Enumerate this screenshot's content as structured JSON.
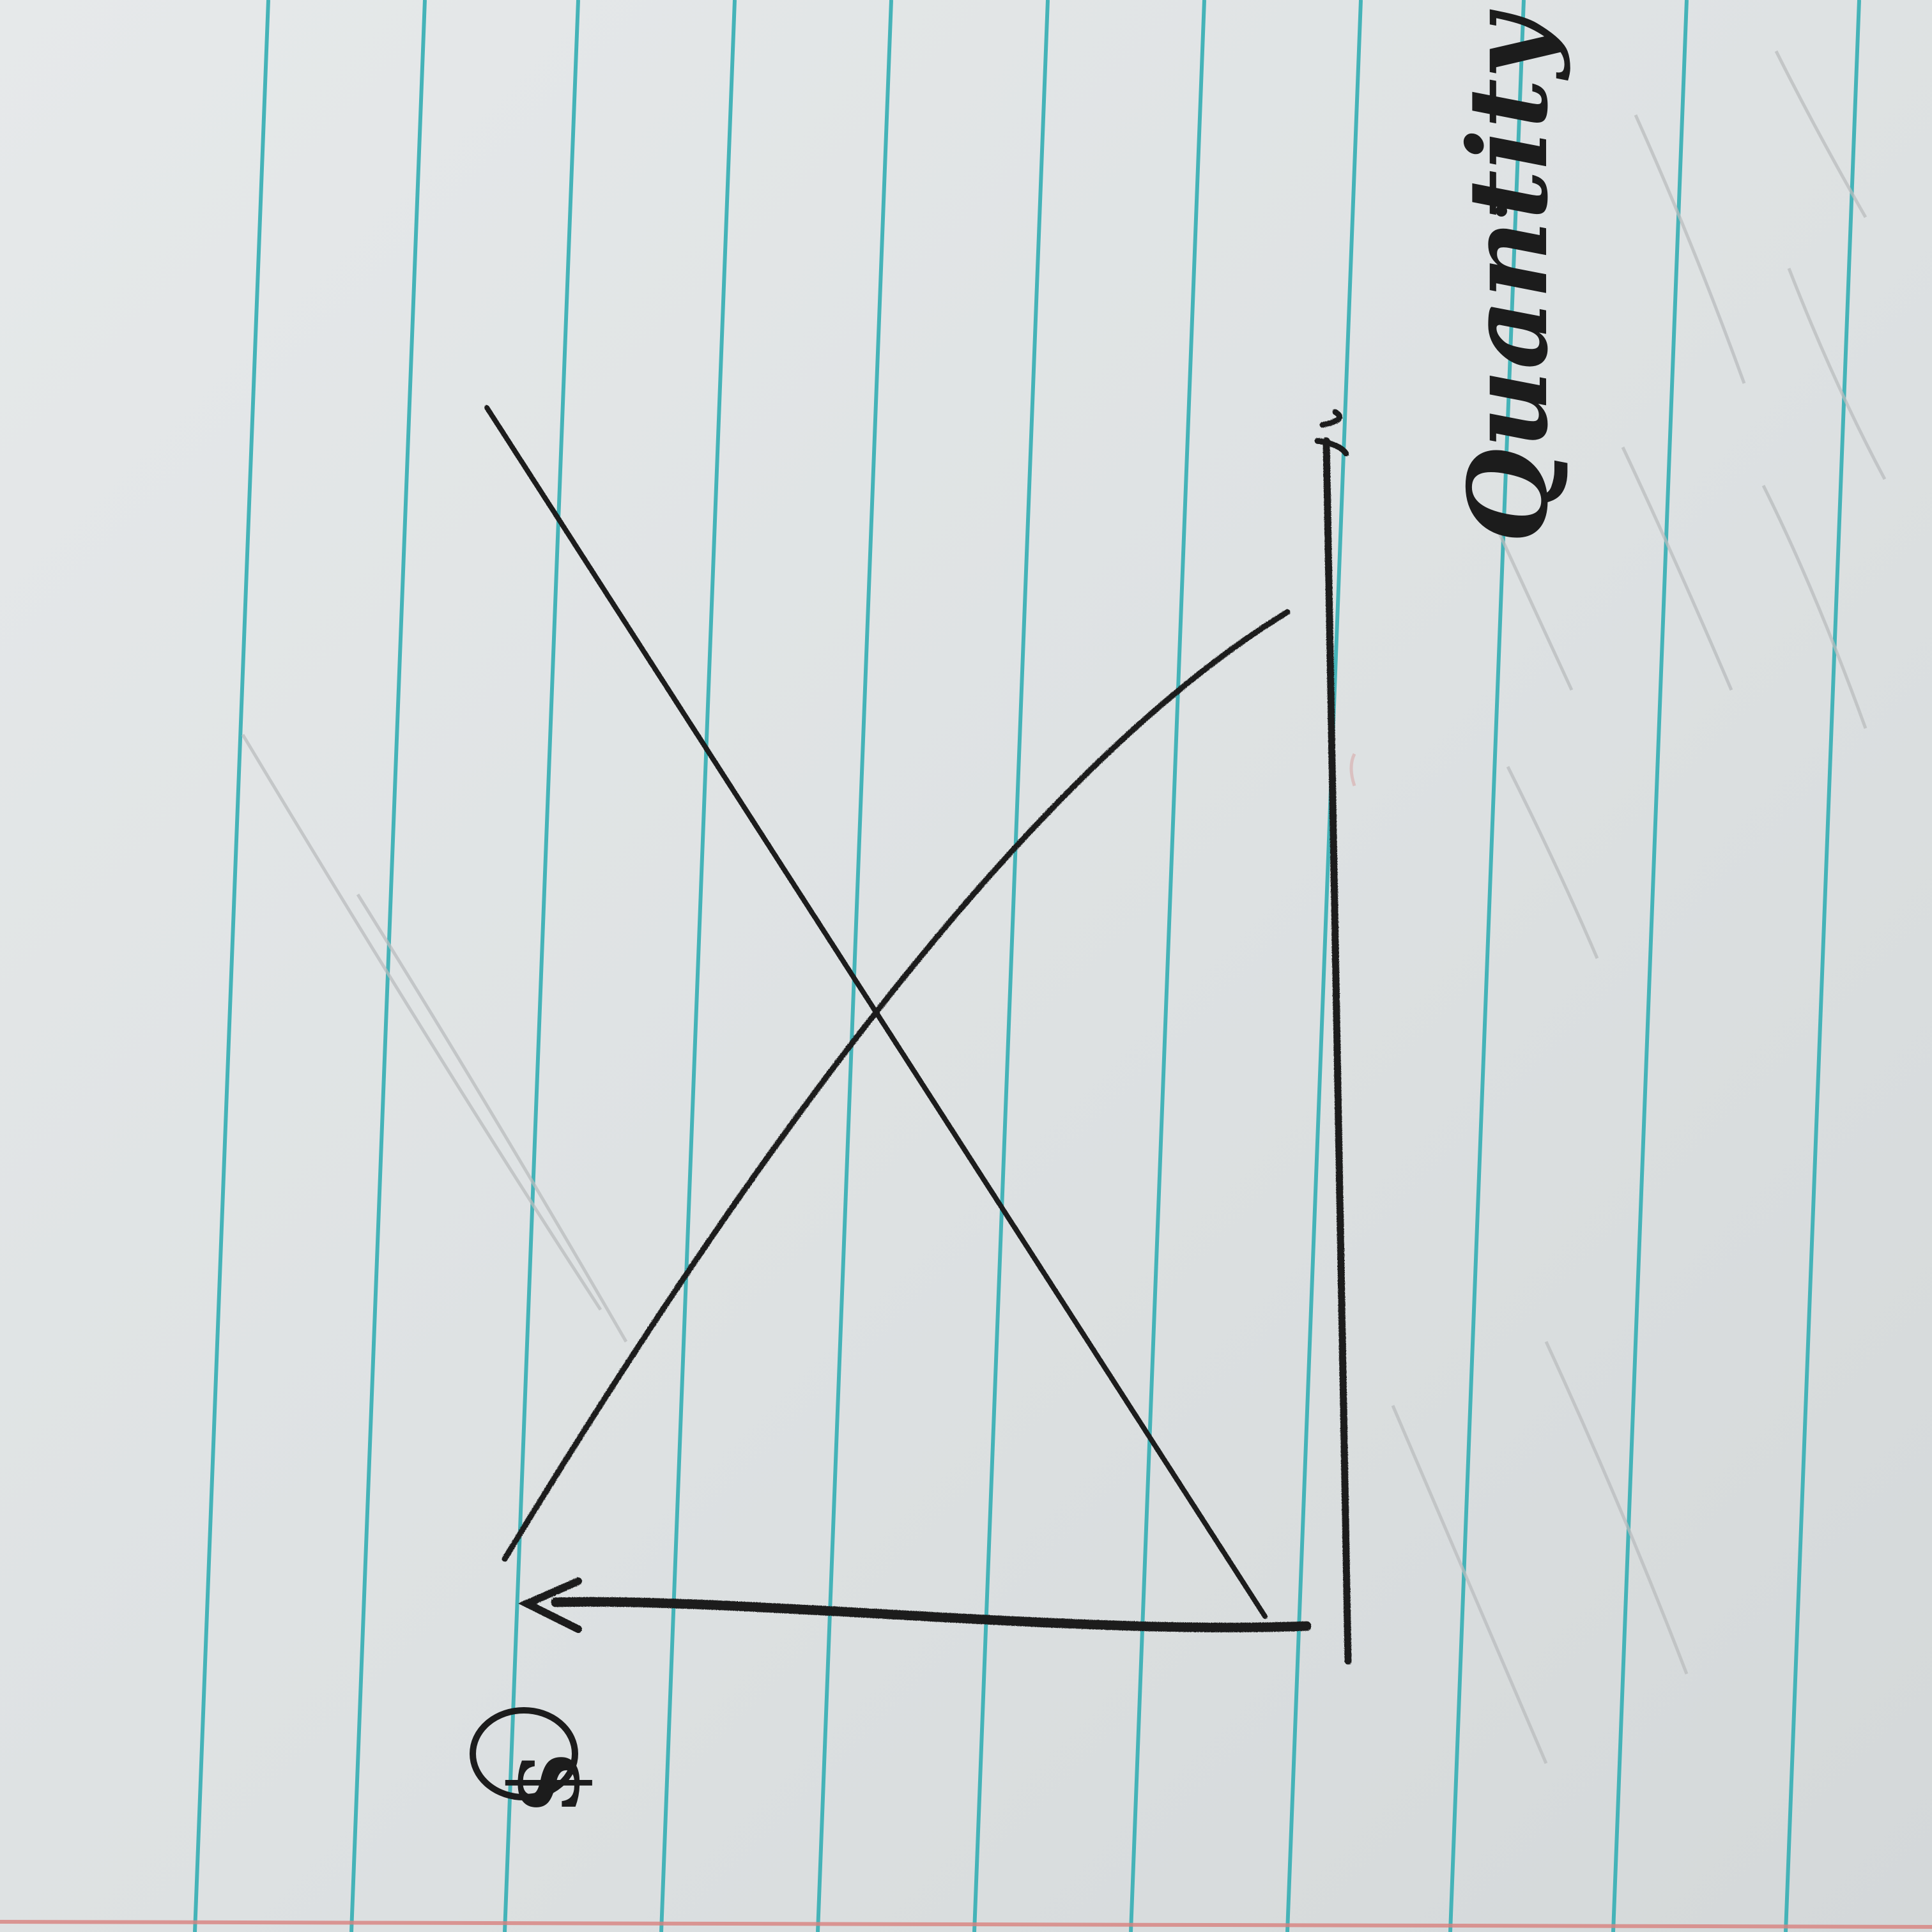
{
  "paper": {
    "background_color": "#dfe3e4",
    "rule_color": "#45b3b8",
    "margin_color": "#d9827f",
    "ink_color": "#1c1c1c",
    "ghost_ink_color": "#b9bcbe"
  },
  "sketch": {
    "axis_label_quantity": "Quantity",
    "axis_label_price": "$"
  }
}
